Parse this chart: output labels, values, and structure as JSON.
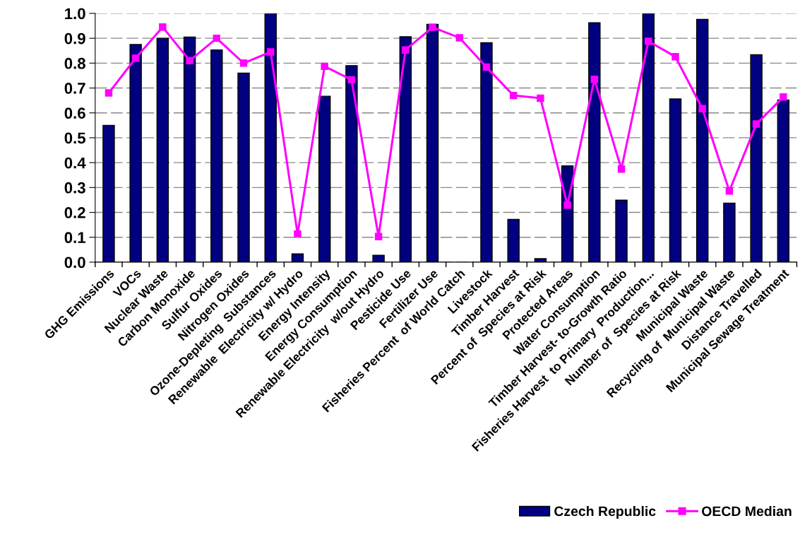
{
  "chart_data": {
    "type": "bar",
    "categories": [
      "GHG Emissions",
      "VOCs",
      "Nuclear Waste",
      "Carbon Monoxide",
      "Sulfur Oxides",
      "Nitrogen Oxides",
      "Ozone-Depleting  Substances",
      "Renewable  Electricity w/ Hydro",
      "Energy Intensity",
      "Energy Consumption",
      "Renewable Electricity  w/out Hydro",
      "Pesticide Use",
      "Fertilizer Use",
      "Fisheries Percent  of World Catch",
      "Livestock",
      "Timber Harvest",
      "Percent of  Species at Risk",
      "Protected Areas",
      "Water Consumption",
      "Timber Harvest- to-Growth Ratio",
      "Fisheries Harvest  to Primary  Production...",
      "Number of  Species at Risk",
      "Municipal Waste",
      "Recycling of  Municipal Waste",
      "Distance Travelled",
      "Municipal Sewage Treatment"
    ],
    "series": [
      {
        "name": "Czech Republic",
        "color": "#000080",
        "values": [
          0.55,
          0.875,
          0.9,
          0.905,
          0.853,
          0.76,
          1.0,
          0.033,
          0.667,
          0.79,
          0.028,
          0.906,
          0.956,
          null,
          0.882,
          0.172,
          0.014,
          0.387,
          0.962,
          0.249,
          1.0,
          0.656,
          0.976,
          0.237,
          0.834,
          0.652
        ]
      },
      {
        "name": "OECD Median",
        "type": "line",
        "color": "#ff00ff",
        "marker": "square",
        "line_style": "solid",
        "values": [
          0.68,
          0.82,
          0.945,
          0.81,
          0.9,
          0.8,
          0.845,
          0.113,
          0.787,
          0.733,
          0.103,
          0.853,
          0.944,
          0.902,
          0.784,
          0.67,
          0.659,
          0.229,
          0.735,
          0.374,
          0.888,
          0.826,
          0.617,
          0.286,
          0.555,
          0.664
        ]
      }
    ],
    "ylim": [
      0,
      1.0
    ],
    "yticks": [
      {
        "value": 0,
        "label": "0.0"
      },
      {
        "value": 0.1,
        "label": "0.1"
      },
      {
        "value": 0.2,
        "label": "0.2"
      },
      {
        "value": 0.3,
        "label": "0.3"
      },
      {
        "value": 0.4,
        "label": "0.4"
      },
      {
        "value": 0.5,
        "label": "0.5"
      },
      {
        "value": 0.6,
        "label": "0.6"
      },
      {
        "value": 0.7,
        "label": "0.7"
      },
      {
        "value": 0.8,
        "label": "0.8"
      },
      {
        "value": 0.9,
        "label": "0.9"
      },
      {
        "value": 1.0,
        "label": "1.0"
      }
    ],
    "grid": "y",
    "legend": "bottom right"
  }
}
